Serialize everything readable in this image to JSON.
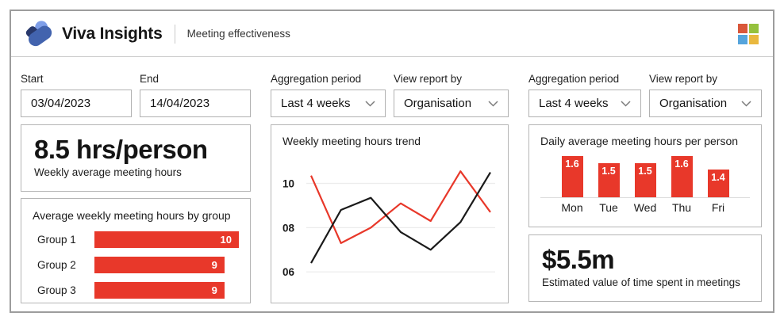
{
  "header": {
    "app_name": "Viva Insights",
    "page_title": "Meeting effectiveness"
  },
  "left_filters": {
    "start_label": "Start",
    "start_value": "03/04/2023",
    "end_label": "End",
    "end_value": "14/04/2023"
  },
  "mid_filters": {
    "aggregation_label": "Aggregation period",
    "aggregation_value": "Last 4 weeks",
    "view_label": "View report by",
    "view_value": "Organisation"
  },
  "right_filters": {
    "aggregation_label": "Aggregation period",
    "aggregation_value": "Last 4 weeks",
    "view_label": "View report by",
    "view_value": "Organisation"
  },
  "weekly_metric": {
    "value": "8.5 hrs/person",
    "caption": "Weekly average meeting hours"
  },
  "value_metric": {
    "value": "$5.5m",
    "caption": "Estimated value of time spent in meetings"
  },
  "chart_data": [
    {
      "id": "group_hours",
      "type": "bar",
      "orientation": "horizontal",
      "title": "Average weekly meeting hours by group",
      "categories": [
        "Group 1",
        "Group 2",
        "Group 3"
      ],
      "values": [
        10,
        9,
        9
      ],
      "xlim": [
        0,
        10
      ],
      "bar_color": "#e8382a",
      "value_labels": "inside-end",
      "grid": false,
      "legend": "none"
    },
    {
      "id": "weekly_trend",
      "type": "line",
      "title": "Weekly meeting hours trend",
      "x": [
        1,
        2,
        3,
        4,
        5,
        6,
        7
      ],
      "yticks": [
        {
          "label": "10",
          "value": 10
        },
        {
          "label": "08",
          "value": 8
        },
        {
          "label": "06",
          "value": 6
        }
      ],
      "ylim": [
        5.4,
        11.2
      ],
      "grid": true,
      "legend": "none",
      "series": [
        {
          "name": "series-red",
          "color": "#e8382a",
          "values": [
            10.35,
            7.3,
            8.0,
            9.1,
            8.3,
            10.55,
            8.7
          ]
        },
        {
          "name": "series-black",
          "color": "#1a1a1a",
          "values": [
            6.4,
            8.8,
            9.35,
            7.8,
            7.0,
            8.25,
            10.5
          ]
        }
      ]
    },
    {
      "id": "daily_hours",
      "type": "bar",
      "orientation": "vertical",
      "title": "Daily average meeting hours per person",
      "categories": [
        "Mon",
        "Tue",
        "Wed",
        "Thu",
        "Fri"
      ],
      "values": [
        1.6,
        1.5,
        1.5,
        1.6,
        1.4
      ],
      "baseline": 1.0,
      "bar_color": "#e8382a",
      "value_labels": "inside-top",
      "grid": false,
      "legend": "none"
    }
  ],
  "colors": {
    "accent_red": "#e8382a",
    "line_black": "#1a1a1a",
    "logo_light_blue": "#7e9ee8",
    "logo_mid_blue": "#4263ae",
    "logo_navy": "#28386b",
    "ms_red": "#d9573a",
    "ms_green": "#95c13d",
    "ms_blue": "#55a4dc",
    "ms_yellow": "#e9b83f",
    "gridline": "#ececec"
  }
}
